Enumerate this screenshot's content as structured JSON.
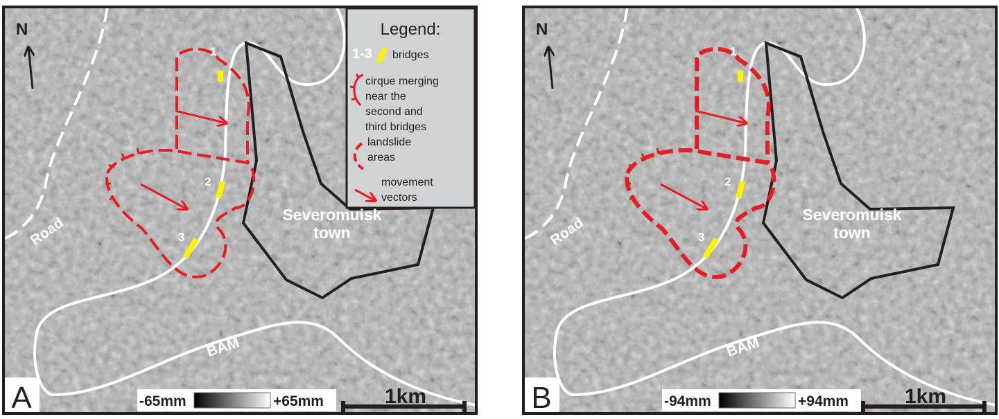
{
  "panels": [
    {
      "label": "A",
      "north": "N",
      "road": "Road",
      "town": [
        "Severomuisk",
        "town"
      ],
      "highway": "BAM",
      "bridges": [
        "1",
        "2",
        "3"
      ],
      "scale": "1km",
      "colorbar": {
        "min": "-65mm",
        "max": "+65mm"
      }
    },
    {
      "label": "B",
      "north": "N",
      "road": "Road",
      "town": [
        "Severomuisk",
        "town"
      ],
      "highway": "BAM",
      "bridges": [
        "1",
        "2",
        "3"
      ],
      "scale": "1km",
      "colorbar": {
        "min": "-94mm",
        "max": "+94mm"
      }
    }
  ],
  "legend": {
    "title": "Legend:",
    "bridges": {
      "symbol": "1-3",
      "label": "bridges"
    },
    "cirque": [
      "cirque merging",
      "near the",
      "second and",
      "third bridges"
    ],
    "landslide": [
      "landslide",
      "areas"
    ],
    "vectors": [
      "movement",
      "vectors"
    ]
  }
}
